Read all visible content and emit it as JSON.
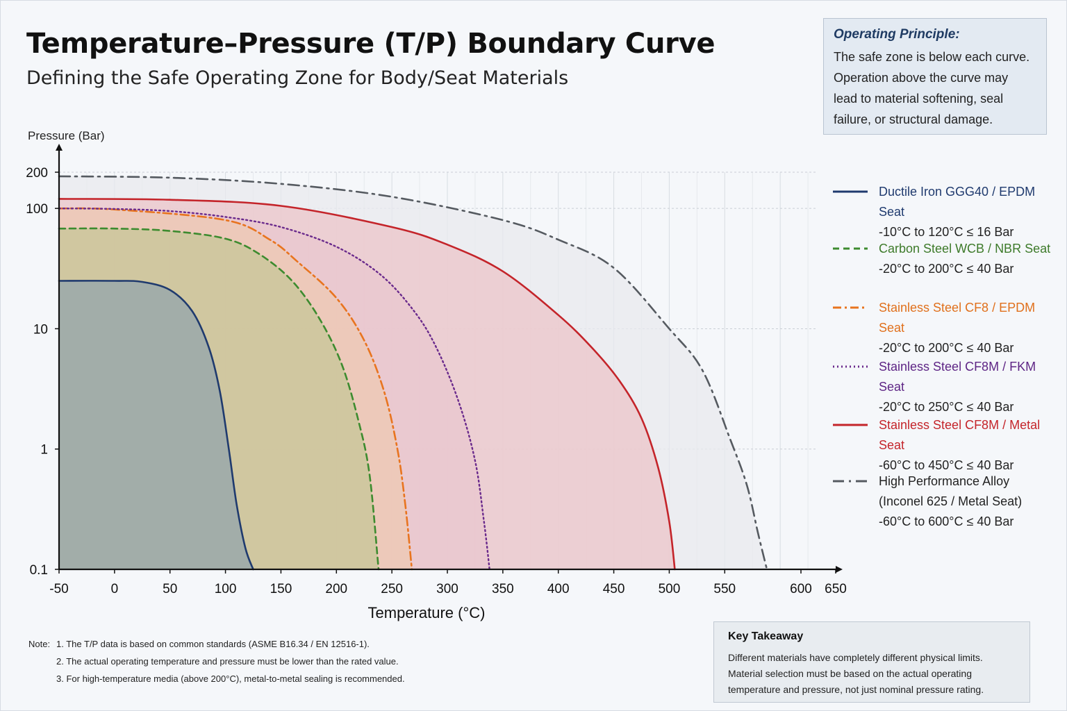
{
  "header": {
    "title": "Temperature–Pressure (T/P) Boundary Curve",
    "subtitle": "Defining the Safe Operating Zone for Body/Seat Materials"
  },
  "principle": {
    "title": "Operating Principle:",
    "lines": [
      "The safe zone is below each curve.",
      "Operation above the curve may",
      "lead to material softening, seal",
      "failure, or structural damage."
    ]
  },
  "chart_data": {
    "type": "area",
    "xlabel": "Temperature (°C)",
    "ylabel": "Pressure (Bar)",
    "xlim": [
      -50,
      650
    ],
    "ylim": [
      0.1,
      200
    ],
    "yscale": "log",
    "x_ticks": [
      "-50",
      "0",
      "50",
      "100",
      "150",
      "200",
      "250",
      "300",
      "350",
      "400",
      "450",
      "500",
      "550",
      "600",
      "650"
    ],
    "y_ticks": [
      "0.1",
      "1",
      "10",
      "100",
      "200"
    ],
    "grid": true,
    "legend_position": "right",
    "series": [
      {
        "name": "Ductile Iron GGG40 / EPDM Seat",
        "range": "-10°C to 120°C ≤ 16 Bar",
        "color": "#1f3a6e",
        "fill": "#8ea3ad",
        "dash": "solid",
        "points": [
          [
            -50,
            25
          ],
          [
            0,
            25
          ],
          [
            25,
            24.5
          ],
          [
            50,
            21
          ],
          [
            70,
            14
          ],
          [
            85,
            7
          ],
          [
            95,
            3
          ],
          [
            103,
            1
          ],
          [
            110,
            0.35
          ],
          [
            118,
            0.15
          ],
          [
            125,
            0.1
          ]
        ]
      },
      {
        "name": "Carbon Steel WCB / NBR Seat",
        "range": "-20°C to 200°C ≤ 40 Bar",
        "color": "#3d8b2f",
        "fill": "#b8c48a",
        "dash": "dashed",
        "points": [
          [
            -50,
            68
          ],
          [
            0,
            68
          ],
          [
            50,
            65
          ],
          [
            100,
            56
          ],
          [
            130,
            42
          ],
          [
            160,
            25
          ],
          [
            185,
            12
          ],
          [
            205,
            5
          ],
          [
            220,
            1.7
          ],
          [
            230,
            0.6
          ],
          [
            238,
            0.1
          ]
        ]
      },
      {
        "name": "Stainless Steel CF8 / EPDM Seat",
        "range": "-20°C to 200°C ≤ 40 Bar",
        "color": "#e8741f",
        "fill": "#f2c9a0",
        "dash": "dashdot",
        "points": [
          [
            -50,
            100
          ],
          [
            0,
            98
          ],
          [
            100,
            80
          ],
          [
            140,
            55
          ],
          [
            165,
            36
          ],
          [
            200,
            18
          ],
          [
            225,
            8
          ],
          [
            243,
            3
          ],
          [
            255,
            1
          ],
          [
            262,
            0.35
          ],
          [
            268,
            0.1
          ]
        ]
      },
      {
        "name": "Stainless Steel CF8M / FKM Seat",
        "range": "-20°C to 250°C ≤ 40 Bar",
        "color": "#6a2a8c",
        "fill": "#e9c2cc",
        "dash": "dotted",
        "points": [
          [
            -50,
            100
          ],
          [
            0,
            99
          ],
          [
            50,
            95
          ],
          [
            100,
            85
          ],
          [
            150,
            70
          ],
          [
            200,
            48
          ],
          [
            240,
            28
          ],
          [
            270,
            14
          ],
          [
            290,
            7
          ],
          [
            310,
            2.5
          ],
          [
            325,
            0.8
          ],
          [
            333,
            0.25
          ],
          [
            338,
            0.1
          ]
        ]
      },
      {
        "name": "Stainless Steel CF8M / Metal Seat",
        "range": "-60°C to 450°C ≤ 40 Bar",
        "color": "#c4242a",
        "fill": "#ecc4c8",
        "dash": "solid",
        "points": [
          [
            -50,
            120
          ],
          [
            50,
            118
          ],
          [
            150,
            105
          ],
          [
            250,
            70
          ],
          [
            300,
            50
          ],
          [
            350,
            30
          ],
          [
            400,
            13
          ],
          [
            430,
            7
          ],
          [
            455,
            3.7
          ],
          [
            475,
            1.8
          ],
          [
            490,
            0.7
          ],
          [
            500,
            0.25
          ],
          [
            505,
            0.1
          ]
        ]
      },
      {
        "name": "High Performance Alloy",
        "name_line2": "(Inconel 625 / Metal Seat)",
        "range": "-60°C to 600°C ≤ 40 Bar",
        "color": "#555a60",
        "fill": "#e8eaed",
        "dash": "dashdotbig",
        "points": [
          [
            -50,
            185
          ],
          [
            50,
            180
          ],
          [
            150,
            160
          ],
          [
            250,
            125
          ],
          [
            350,
            80
          ],
          [
            400,
            55
          ],
          [
            450,
            32
          ],
          [
            500,
            10
          ],
          [
            530,
            4.5
          ],
          [
            555,
            1.2
          ],
          [
            570,
            0.5
          ],
          [
            580,
            0.2
          ],
          [
            588,
            0.1
          ]
        ]
      }
    ]
  },
  "notes": {
    "label": "Note:",
    "items": [
      "1.  The T/P data is based on common standards (ASME B16.34 / EN 12516-1).",
      "2.  The actual operating temperature and pressure must be lower than the rated value.",
      "3.  For high-temperature media (above 200°C), metal-to-metal sealing is recommended."
    ]
  },
  "takeaway": {
    "title": "Key Takeaway",
    "lines": [
      "Different materials have completely different physical limits.",
      "Material selection must be based on the actual operating",
      "temperature and pressure, not just nominal pressure rating."
    ]
  }
}
